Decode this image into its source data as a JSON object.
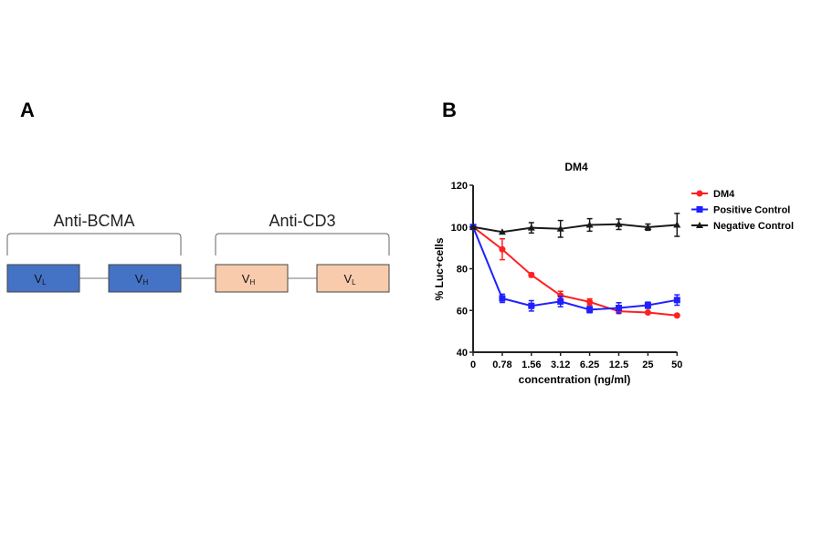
{
  "panels": {
    "a_label": "A",
    "b_label": "B"
  },
  "diagram": {
    "groups": [
      {
        "label": "Anti-BCMA",
        "domains": [
          {
            "name": "V",
            "sub": "L"
          },
          {
            "name": "V",
            "sub": "H"
          }
        ],
        "color": "#4472c4"
      },
      {
        "label": "Anti-CD3",
        "domains": [
          {
            "name": "V",
            "sub": "H"
          },
          {
            "name": "V",
            "sub": "L"
          }
        ],
        "color": "#f8cbad"
      }
    ]
  },
  "chart_data": {
    "type": "line",
    "title": "DM4",
    "xlabel": "concentration (ng/ml)",
    "ylabel": "% Luc+cells",
    "categories": [
      "0",
      "0.78",
      "1.56",
      "3.12",
      "6.25",
      "12.5",
      "25",
      "50"
    ],
    "ylim": [
      40,
      120
    ],
    "yticks": [
      40,
      60,
      80,
      100,
      120
    ],
    "grid": false,
    "legend_position": "right",
    "series": [
      {
        "name": "DM4",
        "color": "#ff2020",
        "marker": "circle",
        "values": [
          100,
          89.3,
          77,
          67.2,
          64.1,
          59.6,
          59,
          57.6
        ],
        "errors": [
          0,
          5,
          1,
          2,
          1.5,
          1,
          0.5,
          0.5
        ]
      },
      {
        "name": "Positive Control",
        "color": "#2020ff",
        "marker": "square",
        "values": [
          100,
          65.8,
          62.2,
          64.3,
          60.4,
          61.2,
          62.5,
          65
        ],
        "errors": [
          0,
          2,
          2.5,
          2.5,
          1.5,
          2.5,
          1.5,
          2.5
        ]
      },
      {
        "name": "Negative Control",
        "color": "#1a1a1a",
        "marker": "triangle",
        "values": [
          100,
          97.6,
          99.6,
          99.1,
          101,
          101.3,
          99.9,
          101
        ],
        "errors": [
          0,
          0,
          2.5,
          4,
          3,
          2.5,
          1.5,
          5.5
        ]
      }
    ]
  }
}
